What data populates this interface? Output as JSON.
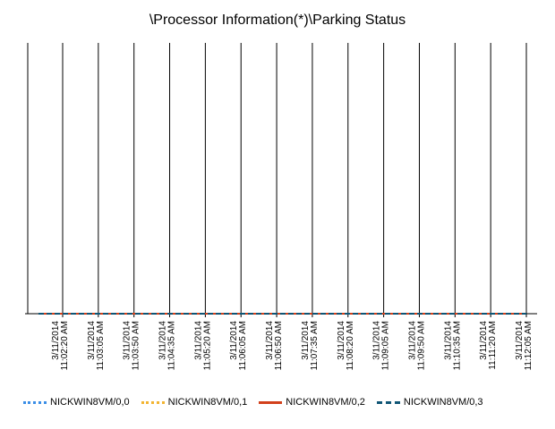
{
  "chart_data": {
    "type": "line",
    "title": "\\Processor Information(*)\\Parking Status",
    "x": [
      [
        "3/11/2014",
        "11:02:20 AM"
      ],
      [
        "3/11/2014",
        "11:03:05 AM"
      ],
      [
        "3/11/2014",
        "11:03:50 AM"
      ],
      [
        "3/11/2014",
        "11:04:35 AM"
      ],
      [
        "3/11/2014",
        "11:05:20 AM"
      ],
      [
        "3/11/2014",
        "11:06:05 AM"
      ],
      [
        "3/11/2014",
        "11:06:50 AM"
      ],
      [
        "3/11/2014",
        "11:07:35 AM"
      ],
      [
        "3/11/2014",
        "11:08:20 AM"
      ],
      [
        "3/11/2014",
        "11:09:05 AM"
      ],
      [
        "3/11/2014",
        "11:09:50 AM"
      ],
      [
        "3/11/2014",
        "11:10:35 AM"
      ],
      [
        "3/11/2014",
        "11:11:20 AM"
      ],
      [
        "3/11/2014",
        "11:12:05 AM"
      ]
    ],
    "series": [
      {
        "name": "NICKWIN8VM/0,0",
        "color": "#3a8ee6",
        "style": "dotted",
        "values": [
          0,
          0,
          0,
          0,
          0,
          0,
          0,
          0,
          0,
          0,
          0,
          0,
          0,
          0
        ]
      },
      {
        "name": "NICKWIN8VM/0,1",
        "color": "#f2b431",
        "style": "dotted",
        "values": [
          0,
          0,
          0,
          0,
          0,
          0,
          0,
          0,
          0,
          0,
          0,
          0,
          0,
          0
        ]
      },
      {
        "name": "NICKWIN8VM/0,2",
        "color": "#d2401b",
        "style": "solid",
        "values": [
          0,
          0,
          0,
          0,
          0,
          0,
          0,
          0,
          0,
          0,
          0,
          0,
          0,
          0
        ]
      },
      {
        "name": "NICKWIN8VM/0,3",
        "color": "#0f5575",
        "style": "dashed",
        "values": [
          0,
          0,
          0,
          0,
          0,
          0,
          0,
          0,
          0,
          0,
          0,
          0,
          0,
          0
        ]
      }
    ],
    "grid": "vertical",
    "legend_position": "bottom"
  }
}
